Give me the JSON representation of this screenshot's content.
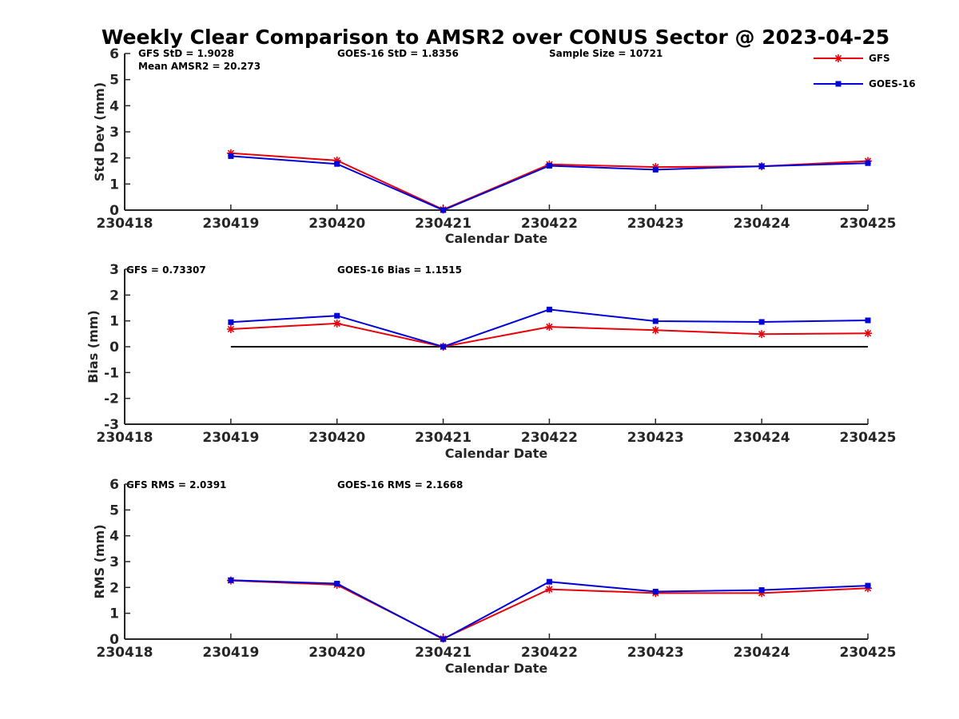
{
  "title": "Weekly Clear Comparison to AMSR2 over CONUS Sector @ 2023-04-25",
  "legend": {
    "position": "top-right",
    "entries": [
      {
        "label": "GFS",
        "color": "#e8000b",
        "marker": "asterisk"
      },
      {
        "label": "GOES-16",
        "color": "#0000d8",
        "marker": "square"
      }
    ]
  },
  "colors": {
    "gfs": "#e8000b",
    "goes": "#0000d8",
    "zero_line": "#000000",
    "axis": "#262626"
  },
  "chart_data": [
    {
      "type": "line",
      "xlabel": "Calendar Date",
      "ylabel": "Std Dev (mm)",
      "categories": [
        "230418",
        "230419",
        "230420",
        "230421",
        "230422",
        "230423",
        "230424",
        "230425"
      ],
      "ylim": [
        0,
        6
      ],
      "yticks": [
        "0",
        "1",
        "2",
        "3",
        "4",
        "5",
        "6"
      ],
      "grid": false,
      "zero_line": false,
      "annotations": [
        "GFS StD = 1.9028",
        "GOES-16 StD = 1.8356",
        "Sample Size = 10721",
        "Mean AMSR2 = 20.273"
      ],
      "series": [
        {
          "name": "GFS",
          "values": [
            null,
            2.18,
            1.9,
            0.02,
            1.75,
            1.65,
            1.68,
            1.88
          ]
        },
        {
          "name": "GOES-16",
          "values": [
            null,
            2.07,
            1.77,
            0.0,
            1.7,
            1.55,
            1.68,
            1.8
          ]
        }
      ]
    },
    {
      "type": "line",
      "xlabel": "Calendar Date",
      "ylabel": "Bias (mm)",
      "categories": [
        "230418",
        "230419",
        "230420",
        "230421",
        "230422",
        "230423",
        "230424",
        "230425"
      ],
      "ylim": [
        -3,
        3
      ],
      "yticks": [
        "-3",
        "-2",
        "-1",
        "0",
        "1",
        "2",
        "3"
      ],
      "grid": false,
      "zero_line": true,
      "annotations": [
        "GFS = 0.73307",
        "GOES-16 Bias  = 1.1515"
      ],
      "series": [
        {
          "name": "GFS",
          "values": [
            null,
            0.68,
            0.9,
            0.0,
            0.77,
            0.64,
            0.49,
            0.52
          ]
        },
        {
          "name": "GOES-16",
          "values": [
            null,
            0.95,
            1.2,
            0.0,
            1.44,
            0.99,
            0.96,
            1.02
          ]
        }
      ]
    },
    {
      "type": "line",
      "xlabel": "Calendar Date",
      "ylabel": "RMS (mm)",
      "categories": [
        "230418",
        "230419",
        "230420",
        "230421",
        "230422",
        "230423",
        "230424",
        "230425"
      ],
      "ylim": [
        0,
        6
      ],
      "yticks": [
        "0",
        "1",
        "2",
        "3",
        "4",
        "5",
        "6"
      ],
      "grid": false,
      "zero_line": false,
      "annotations": [
        "GFS RMS = 2.0391",
        "GOES-16 RMS = 2.1668"
      ],
      "series": [
        {
          "name": "GFS",
          "values": [
            null,
            2.27,
            2.1,
            0.02,
            1.93,
            1.78,
            1.78,
            1.97
          ]
        },
        {
          "name": "GOES-16",
          "values": [
            null,
            2.28,
            2.15,
            0.0,
            2.22,
            1.84,
            1.9,
            2.07
          ]
        }
      ]
    }
  ]
}
